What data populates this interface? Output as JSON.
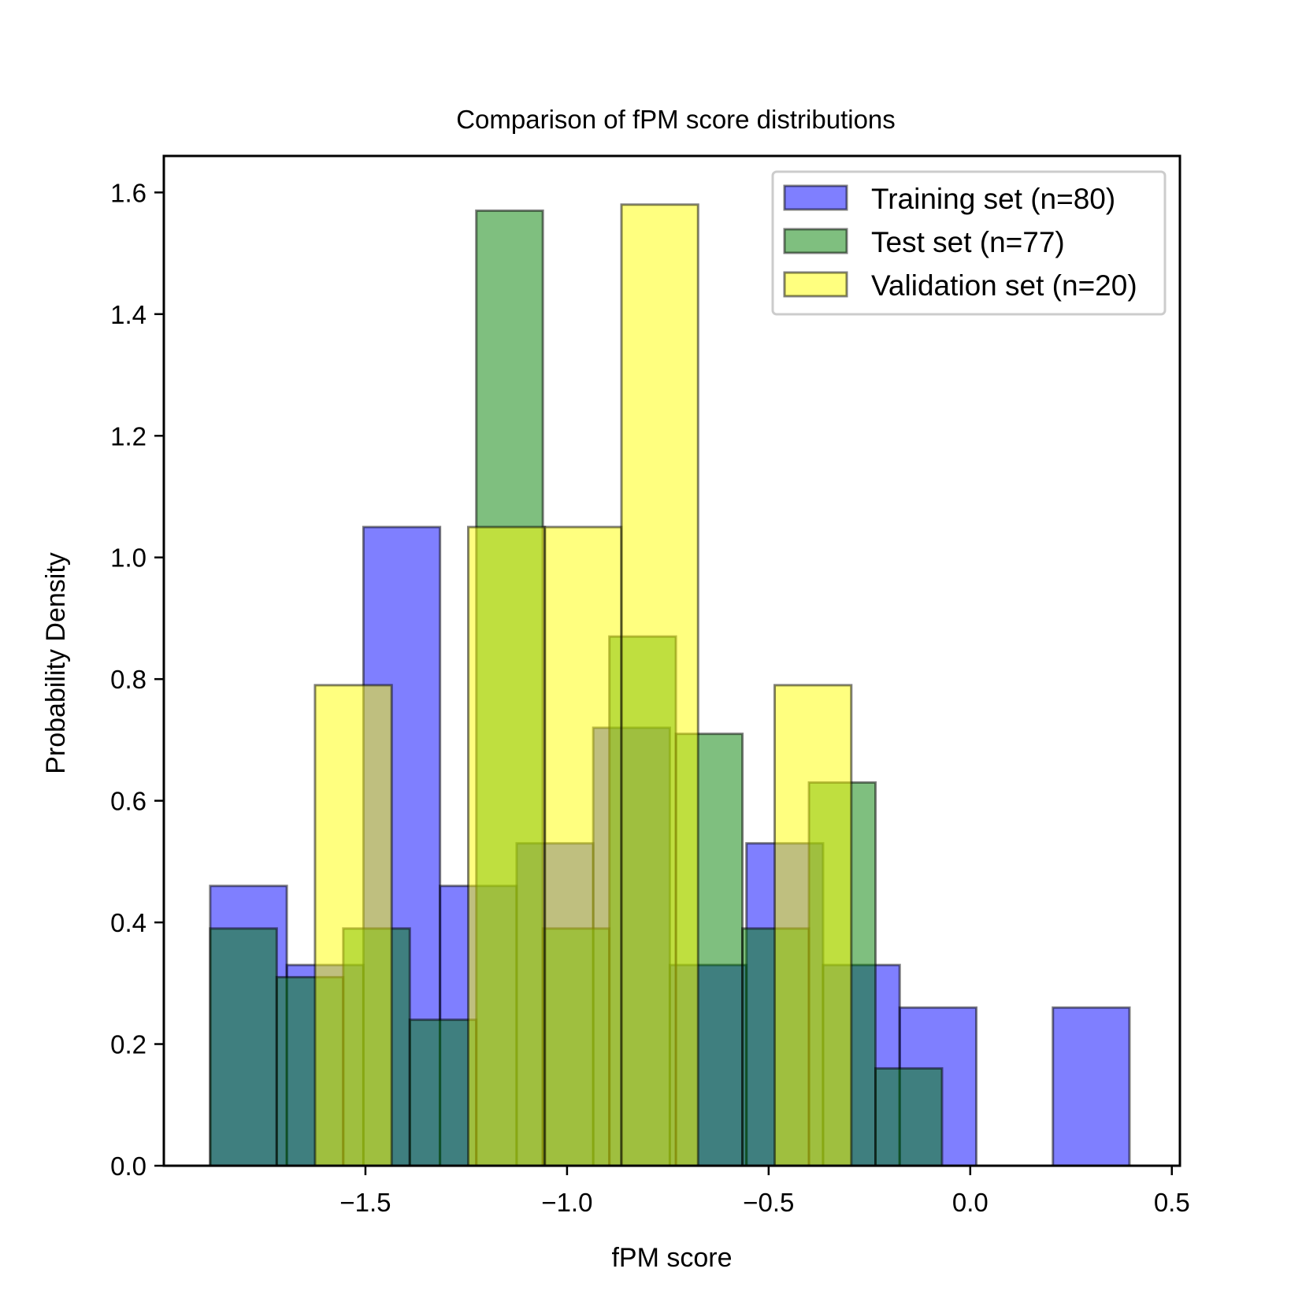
{
  "chart_data": {
    "type": "bar",
    "title": "Comparison of fPM score distributions",
    "xlabel": "fPM score",
    "ylabel": "Probability Density",
    "xlim": [
      -2.0,
      0.52
    ],
    "ylim": [
      0.0,
      1.66
    ],
    "x_ticks": [
      -1.5,
      -1.0,
      -0.5,
      0.0,
      0.5
    ],
    "x_tick_labels": [
      "−1.5",
      "−1.0",
      "−0.5",
      "0.0",
      "0.5"
    ],
    "y_ticks": [
      0.0,
      0.2,
      0.4,
      0.6,
      0.8,
      1.0,
      1.2,
      1.4,
      1.6
    ],
    "y_tick_labels": [
      "0.0",
      "0.2",
      "0.4",
      "0.6",
      "0.8",
      "1.0",
      "1.2",
      "1.4",
      "1.6"
    ],
    "grid": false,
    "legend_position": "top-right",
    "series": [
      {
        "name": "Training set (n=80)",
        "color": "#0000ff",
        "alpha": 0.5,
        "bins": [
          {
            "x0": -1.885,
            "x1": -1.695,
            "y": 0.46
          },
          {
            "x0": -1.695,
            "x1": -1.505,
            "y": 0.33
          },
          {
            "x0": -1.505,
            "x1": -1.315,
            "y": 1.05
          },
          {
            "x0": -1.315,
            "x1": -1.125,
            "y": 0.46
          },
          {
            "x0": -1.125,
            "x1": -0.935,
            "y": 0.53
          },
          {
            "x0": -0.935,
            "x1": -0.745,
            "y": 0.72
          },
          {
            "x0": -0.745,
            "x1": -0.555,
            "y": 0.33
          },
          {
            "x0": -0.555,
            "x1": -0.365,
            "y": 0.53
          },
          {
            "x0": -0.365,
            "x1": -0.175,
            "y": 0.33
          },
          {
            "x0": -0.175,
            "x1": 0.015,
            "y": 0.26
          },
          {
            "x0": 0.015,
            "x1": 0.205,
            "y": 0.0
          },
          {
            "x0": 0.205,
            "x1": 0.395,
            "y": 0.26
          }
        ]
      },
      {
        "name": "Test set (n=77)",
        "color": "#008000",
        "alpha": 0.5,
        "bins": [
          {
            "x0": -1.885,
            "x1": -1.72,
            "y": 0.39
          },
          {
            "x0": -1.72,
            "x1": -1.555,
            "y": 0.31
          },
          {
            "x0": -1.555,
            "x1": -1.39,
            "y": 0.39
          },
          {
            "x0": -1.39,
            "x1": -1.225,
            "y": 0.24
          },
          {
            "x0": -1.225,
            "x1": -1.06,
            "y": 1.57
          },
          {
            "x0": -1.06,
            "x1": -0.895,
            "y": 0.39
          },
          {
            "x0": -0.895,
            "x1": -0.73,
            "y": 0.87
          },
          {
            "x0": -0.73,
            "x1": -0.565,
            "y": 0.71
          },
          {
            "x0": -0.565,
            "x1": -0.4,
            "y": 0.39
          },
          {
            "x0": -0.4,
            "x1": -0.235,
            "y": 0.63
          },
          {
            "x0": -0.235,
            "x1": -0.07,
            "y": 0.16
          }
        ]
      },
      {
        "name": "Validation set (n=20)",
        "color": "#ffff00",
        "alpha": 0.5,
        "bins": [
          {
            "x0": -1.625,
            "x1": -1.435,
            "y": 0.79
          },
          {
            "x0": -1.435,
            "x1": -1.245,
            "y": 0.0
          },
          {
            "x0": -1.245,
            "x1": -1.055,
            "y": 1.05
          },
          {
            "x0": -1.055,
            "x1": -0.865,
            "y": 1.05
          },
          {
            "x0": -0.865,
            "x1": -0.675,
            "y": 1.58
          },
          {
            "x0": -0.675,
            "x1": -0.485,
            "y": 0.0
          },
          {
            "x0": -0.485,
            "x1": -0.295,
            "y": 0.79
          }
        ]
      }
    ]
  }
}
